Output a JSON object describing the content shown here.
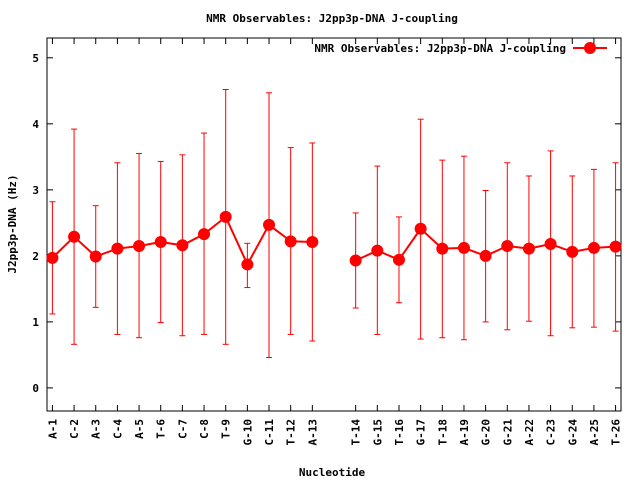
{
  "chart_data": {
    "type": "line",
    "title": "NMR Observables: J2pp3p-DNA J-coupling",
    "xlabel": "Nucleotide",
    "ylabel": "J2pp3p-DNA (Hz)",
    "ylim": [
      -0.35,
      5.3
    ],
    "yticks": [
      0,
      1,
      2,
      3,
      4,
      5
    ],
    "ytick_labels": [
      "0",
      "1",
      "2",
      "3",
      "4",
      "5"
    ],
    "grid": false,
    "legend_position": "top-right",
    "series_color": "#ff0000",
    "series": [
      {
        "name": "NMR Observables: J2pp3p-DNA J-coupling",
        "points": [
          {
            "x": 1,
            "label": "A-1",
            "y": 1.97,
            "low": 1.12,
            "high": 2.82
          },
          {
            "x": 2,
            "label": "C-2",
            "y": 2.29,
            "low": 0.66,
            "high": 3.92
          },
          {
            "x": 3,
            "label": "A-3",
            "y": 1.99,
            "low": 1.22,
            "high": 2.76
          },
          {
            "x": 4,
            "label": "C-4",
            "y": 2.11,
            "low": 0.81,
            "high": 3.41
          },
          {
            "x": 5,
            "label": "A-5",
            "y": 2.15,
            "low": 0.76,
            "high": 3.55
          },
          {
            "x": 6,
            "label": "T-6",
            "y": 2.21,
            "low": 0.99,
            "high": 3.43
          },
          {
            "x": 7,
            "label": "C-7",
            "y": 2.16,
            "low": 0.79,
            "high": 3.53
          },
          {
            "x": 8,
            "label": "C-8",
            "y": 2.33,
            "low": 0.81,
            "high": 3.86
          },
          {
            "x": 9,
            "label": "T-9",
            "y": 2.59,
            "low": 0.66,
            "high": 4.52
          },
          {
            "x": 10,
            "label": "G-10",
            "y": 1.87,
            "low": 1.52,
            "high": 2.19
          },
          {
            "x": 11,
            "label": "C-11",
            "y": 2.47,
            "low": 0.46,
            "high": 4.47
          },
          {
            "x": 12,
            "label": "T-12",
            "y": 2.22,
            "low": 0.81,
            "high": 3.64
          },
          {
            "x": 13,
            "label": "A-13",
            "y": 2.21,
            "low": 0.71,
            "high": 3.71
          },
          {
            "x": 15,
            "label": "T-14",
            "y": 1.93,
            "low": 1.21,
            "high": 2.65
          },
          {
            "x": 16,
            "label": "G-15",
            "y": 2.08,
            "low": 0.81,
            "high": 3.36
          },
          {
            "x": 17,
            "label": "T-16",
            "y": 1.94,
            "low": 1.29,
            "high": 2.59
          },
          {
            "x": 18,
            "label": "G-17",
            "y": 2.41,
            "low": 0.74,
            "high": 4.07
          },
          {
            "x": 19,
            "label": "T-18",
            "y": 2.11,
            "low": 0.76,
            "high": 3.45
          },
          {
            "x": 20,
            "label": "A-19",
            "y": 2.12,
            "low": 0.73,
            "high": 3.51
          },
          {
            "x": 21,
            "label": "G-20",
            "y": 2.0,
            "low": 1.0,
            "high": 2.99
          },
          {
            "x": 22,
            "label": "G-21",
            "y": 2.15,
            "low": 0.88,
            "high": 3.41
          },
          {
            "x": 23,
            "label": "A-22",
            "y": 2.11,
            "low": 1.01,
            "high": 3.21
          },
          {
            "x": 24,
            "label": "C-23",
            "y": 2.18,
            "low": 0.79,
            "high": 3.59
          },
          {
            "x": 25,
            "label": "G-24",
            "y": 2.06,
            "low": 0.91,
            "high": 3.21
          },
          {
            "x": 26,
            "label": "A-25",
            "y": 2.12,
            "low": 0.92,
            "high": 3.31
          },
          {
            "x": 27,
            "label": "T-26",
            "y": 2.14,
            "low": 0.86,
            "high": 3.41
          }
        ]
      }
    ],
    "xlim": [
      0.75,
      27.25
    ]
  }
}
